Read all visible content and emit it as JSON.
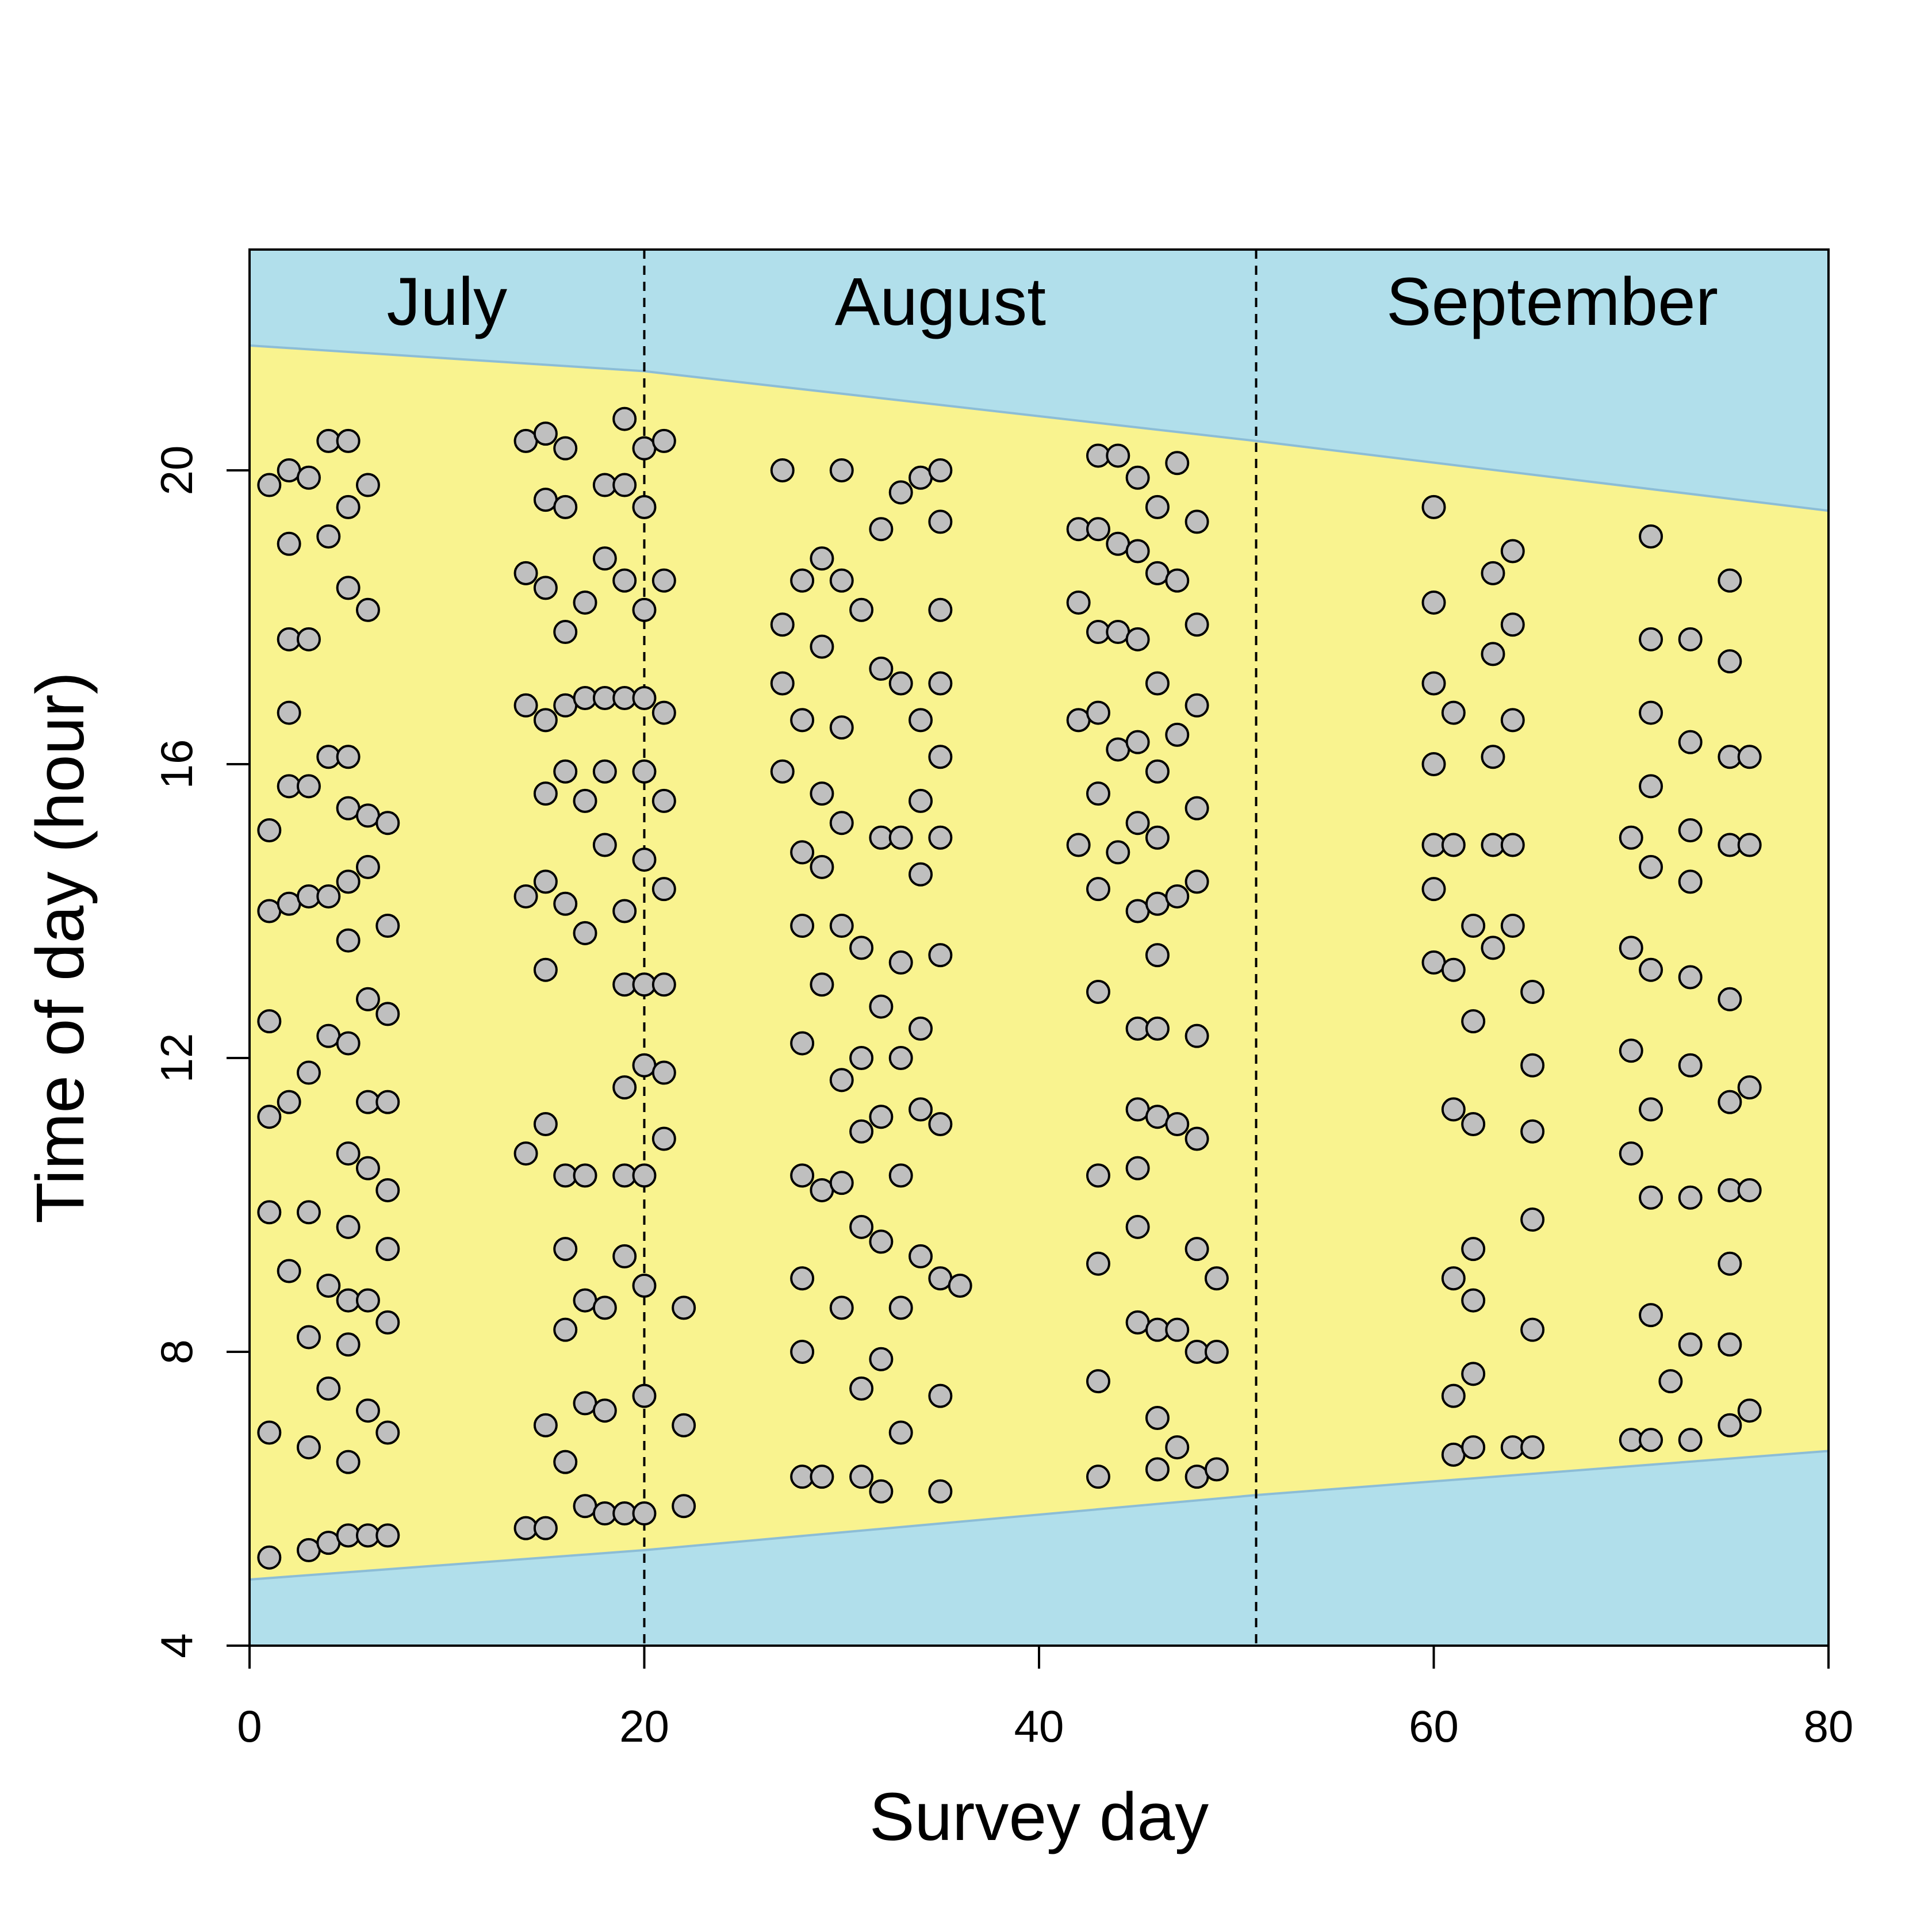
{
  "chart_data": {
    "type": "scatter",
    "xlabel": "Survey day",
    "ylabel": "Time of day (hour)",
    "xlim": [
      0,
      80
    ],
    "ylim": [
      4,
      23
    ],
    "x_ticks": [
      0,
      20,
      40,
      60,
      80
    ],
    "y_ticks": [
      4,
      8,
      12,
      16,
      20
    ],
    "grid": false,
    "month_labels": [
      {
        "label": "July",
        "x_center": 10
      },
      {
        "label": "August",
        "x_center": 35
      },
      {
        "label": "September",
        "x_center": 66
      }
    ],
    "month_boundaries": [
      20,
      51
    ],
    "daylight": {
      "x": [
        0,
        20,
        51,
        80
      ],
      "sunrise": [
        4.9,
        5.3,
        6.05,
        6.65
      ],
      "sunset": [
        21.7,
        21.35,
        20.4,
        19.45
      ]
    },
    "colors": {
      "night": "#b1dfeb",
      "day": "#f9f38f",
      "edge_line": "#8cbdd6",
      "point_fill": "#bfbfbf",
      "point_edge": "#000000"
    },
    "points": [
      [
        1,
        19.8
      ],
      [
        1,
        15.1
      ],
      [
        1,
        14.0
      ],
      [
        1,
        12.5
      ],
      [
        1,
        11.2
      ],
      [
        1,
        9.9
      ],
      [
        1,
        6.9
      ],
      [
        1,
        5.2
      ],
      [
        2,
        20.0
      ],
      [
        2,
        19.0
      ],
      [
        2,
        17.7
      ],
      [
        2,
        16.7
      ],
      [
        2,
        15.7
      ],
      [
        2,
        14.1
      ],
      [
        2,
        11.4
      ],
      [
        2,
        9.1
      ],
      [
        3,
        19.9
      ],
      [
        3,
        17.7
      ],
      [
        3,
        15.7
      ],
      [
        3,
        14.2
      ],
      [
        3,
        11.8
      ],
      [
        3,
        9.9
      ],
      [
        3,
        8.2
      ],
      [
        3,
        6.7
      ],
      [
        3,
        5.3
      ],
      [
        4,
        20.4
      ],
      [
        4,
        19.1
      ],
      [
        4,
        16.1
      ],
      [
        4,
        14.2
      ],
      [
        4,
        12.3
      ],
      [
        4,
        8.9
      ],
      [
        4,
        7.5
      ],
      [
        4,
        5.4
      ],
      [
        5,
        20.4
      ],
      [
        5,
        19.5
      ],
      [
        5,
        18.4
      ],
      [
        5,
        16.1
      ],
      [
        5,
        15.4
      ],
      [
        5,
        14.4
      ],
      [
        5,
        13.6
      ],
      [
        5,
        12.2
      ],
      [
        5,
        10.7
      ],
      [
        5,
        9.7
      ],
      [
        5,
        8.7
      ],
      [
        5,
        8.1
      ],
      [
        5,
        6.5
      ],
      [
        5,
        5.5
      ],
      [
        6,
        19.8
      ],
      [
        6,
        18.1
      ],
      [
        6,
        15.3
      ],
      [
        6,
        14.6
      ],
      [
        6,
        12.8
      ],
      [
        6,
        11.4
      ],
      [
        6,
        10.5
      ],
      [
        6,
        8.7
      ],
      [
        6,
        7.2
      ],
      [
        6,
        5.5
      ],
      [
        7,
        15.2
      ],
      [
        7,
        13.8
      ],
      [
        7,
        12.6
      ],
      [
        7,
        11.4
      ],
      [
        7,
        10.2
      ],
      [
        7,
        9.4
      ],
      [
        7,
        8.4
      ],
      [
        7,
        6.9
      ],
      [
        7,
        5.5
      ],
      [
        14,
        20.4
      ],
      [
        14,
        18.6
      ],
      [
        14,
        16.8
      ],
      [
        14,
        14.2
      ],
      [
        14,
        10.7
      ],
      [
        14,
        5.6
      ],
      [
        15,
        20.5
      ],
      [
        15,
        19.6
      ],
      [
        15,
        18.4
      ],
      [
        15,
        16.6
      ],
      [
        15,
        15.6
      ],
      [
        15,
        14.4
      ],
      [
        15,
        13.2
      ],
      [
        15,
        11.1
      ],
      [
        15,
        7.0
      ],
      [
        15,
        5.6
      ],
      [
        16,
        20.3
      ],
      [
        16,
        19.5
      ],
      [
        16,
        17.8
      ],
      [
        16,
        16.8
      ],
      [
        16,
        15.9
      ],
      [
        16,
        14.1
      ],
      [
        16,
        10.4
      ],
      [
        16,
        9.4
      ],
      [
        16,
        8.3
      ],
      [
        16,
        6.5
      ],
      [
        17,
        18.2
      ],
      [
        17,
        16.9
      ],
      [
        17,
        15.5
      ],
      [
        17,
        13.7
      ],
      [
        17,
        10.4
      ],
      [
        17,
        8.7
      ],
      [
        17,
        7.3
      ],
      [
        17,
        5.9
      ],
      [
        18,
        19.8
      ],
      [
        18,
        18.8
      ],
      [
        18,
        16.9
      ],
      [
        18,
        15.9
      ],
      [
        18,
        14.9
      ],
      [
        18,
        8.6
      ],
      [
        18,
        7.2
      ],
      [
        18,
        5.8
      ],
      [
        19,
        20.7
      ],
      [
        19,
        19.8
      ],
      [
        19,
        18.5
      ],
      [
        19,
        16.9
      ],
      [
        19,
        14.0
      ],
      [
        19,
        13.0
      ],
      [
        19,
        11.6
      ],
      [
        19,
        10.4
      ],
      [
        19,
        9.3
      ],
      [
        19,
        5.8
      ],
      [
        20,
        20.3
      ],
      [
        20,
        19.5
      ],
      [
        20,
        18.1
      ],
      [
        20,
        16.9
      ],
      [
        20,
        15.9
      ],
      [
        20,
        14.7
      ],
      [
        20,
        13.0
      ],
      [
        20,
        11.9
      ],
      [
        20,
        10.4
      ],
      [
        20,
        8.9
      ],
      [
        20,
        7.4
      ],
      [
        20,
        5.8
      ],
      [
        21,
        20.4
      ],
      [
        21,
        18.5
      ],
      [
        21,
        16.7
      ],
      [
        21,
        15.5
      ],
      [
        21,
        14.3
      ],
      [
        21,
        13.0
      ],
      [
        21,
        11.8
      ],
      [
        21,
        10.9
      ],
      [
        22,
        8.6
      ],
      [
        22,
        7.0
      ],
      [
        22,
        5.9
      ],
      [
        27,
        20.0
      ],
      [
        27,
        17.9
      ],
      [
        27,
        17.1
      ],
      [
        27,
        15.9
      ],
      [
        28,
        18.5
      ],
      [
        28,
        16.6
      ],
      [
        28,
        14.8
      ],
      [
        28,
        13.8
      ],
      [
        28,
        12.2
      ],
      [
        28,
        10.4
      ],
      [
        28,
        9.0
      ],
      [
        28,
        8.0
      ],
      [
        28,
        6.3
      ],
      [
        29,
        18.8
      ],
      [
        29,
        17.6
      ],
      [
        29,
        15.6
      ],
      [
        29,
        14.6
      ],
      [
        29,
        13.0
      ],
      [
        29,
        10.2
      ],
      [
        29,
        6.3
      ],
      [
        30,
        20.0
      ],
      [
        30,
        18.5
      ],
      [
        30,
        16.5
      ],
      [
        30,
        15.2
      ],
      [
        30,
        13.8
      ],
      [
        30,
        11.7
      ],
      [
        30,
        10.3
      ],
      [
        30,
        8.6
      ],
      [
        31,
        18.1
      ],
      [
        31,
        13.5
      ],
      [
        31,
        12.0
      ],
      [
        31,
        11.0
      ],
      [
        31,
        9.7
      ],
      [
        31,
        7.5
      ],
      [
        31,
        6.3
      ],
      [
        32,
        19.2
      ],
      [
        32,
        17.3
      ],
      [
        32,
        15.0
      ],
      [
        32,
        12.7
      ],
      [
        32,
        11.2
      ],
      [
        32,
        9.5
      ],
      [
        32,
        7.9
      ],
      [
        32,
        6.1
      ],
      [
        33,
        19.7
      ],
      [
        33,
        17.1
      ],
      [
        33,
        15.0
      ],
      [
        33,
        13.3
      ],
      [
        33,
        12.0
      ],
      [
        33,
        10.4
      ],
      [
        33,
        8.6
      ],
      [
        33,
        6.9
      ],
      [
        34,
        19.9
      ],
      [
        34,
        16.6
      ],
      [
        34,
        15.5
      ],
      [
        34,
        14.5
      ],
      [
        34,
        12.4
      ],
      [
        34,
        11.3
      ],
      [
        34,
        9.3
      ],
      [
        35,
        20.0
      ],
      [
        35,
        19.3
      ],
      [
        35,
        18.1
      ],
      [
        35,
        17.1
      ],
      [
        35,
        16.1
      ],
      [
        35,
        15.0
      ],
      [
        35,
        13.4
      ],
      [
        35,
        11.1
      ],
      [
        35,
        9.0
      ],
      [
        35,
        7.4
      ],
      [
        35,
        6.1
      ],
      [
        36,
        8.9
      ],
      [
        42,
        19.2
      ],
      [
        42,
        18.2
      ],
      [
        42,
        16.6
      ],
      [
        42,
        14.9
      ],
      [
        43,
        20.2
      ],
      [
        43,
        19.2
      ],
      [
        43,
        17.8
      ],
      [
        43,
        16.7
      ],
      [
        43,
        15.6
      ],
      [
        43,
        14.3
      ],
      [
        43,
        12.9
      ],
      [
        43,
        10.4
      ],
      [
        43,
        9.2
      ],
      [
        43,
        7.6
      ],
      [
        43,
        6.3
      ],
      [
        44,
        20.2
      ],
      [
        44,
        19.0
      ],
      [
        44,
        17.8
      ],
      [
        44,
        16.2
      ],
      [
        44,
        14.8
      ],
      [
        45,
        19.9
      ],
      [
        45,
        18.9
      ],
      [
        45,
        17.7
      ],
      [
        45,
        16.3
      ],
      [
        45,
        15.2
      ],
      [
        45,
        14.0
      ],
      [
        45,
        12.4
      ],
      [
        45,
        11.3
      ],
      [
        45,
        10.5
      ],
      [
        45,
        9.7
      ],
      [
        45,
        8.4
      ],
      [
        46,
        19.5
      ],
      [
        46,
        18.6
      ],
      [
        46,
        17.1
      ],
      [
        46,
        15.9
      ],
      [
        46,
        15.0
      ],
      [
        46,
        14.1
      ],
      [
        46,
        13.4
      ],
      [
        46,
        12.4
      ],
      [
        46,
        11.2
      ],
      [
        46,
        8.3
      ],
      [
        46,
        7.1
      ],
      [
        46,
        6.4
      ],
      [
        47,
        20.1
      ],
      [
        47,
        18.5
      ],
      [
        47,
        16.4
      ],
      [
        47,
        14.2
      ],
      [
        47,
        11.1
      ],
      [
        47,
        8.3
      ],
      [
        47,
        6.7
      ],
      [
        48,
        19.3
      ],
      [
        48,
        17.9
      ],
      [
        48,
        16.8
      ],
      [
        48,
        15.4
      ],
      [
        48,
        14.4
      ],
      [
        48,
        12.3
      ],
      [
        48,
        10.9
      ],
      [
        48,
        9.4
      ],
      [
        48,
        8.0
      ],
      [
        48,
        6.3
      ],
      [
        49,
        9.0
      ],
      [
        49,
        8.0
      ],
      [
        49,
        6.4
      ],
      [
        60,
        19.5
      ],
      [
        60,
        18.2
      ],
      [
        60,
        17.1
      ],
      [
        60,
        16.0
      ],
      [
        60,
        14.9
      ],
      [
        60,
        14.3
      ],
      [
        60,
        13.3
      ],
      [
        61,
        16.7
      ],
      [
        61,
        14.9
      ],
      [
        61,
        13.2
      ],
      [
        61,
        11.3
      ],
      [
        61,
        9.0
      ],
      [
        61,
        7.4
      ],
      [
        61,
        6.6
      ],
      [
        62,
        13.8
      ],
      [
        62,
        12.5
      ],
      [
        62,
        11.1
      ],
      [
        62,
        9.4
      ],
      [
        62,
        8.7
      ],
      [
        62,
        7.7
      ],
      [
        62,
        6.7
      ],
      [
        63,
        18.6
      ],
      [
        63,
        17.5
      ],
      [
        63,
        16.1
      ],
      [
        63,
        14.9
      ],
      [
        63,
        13.5
      ],
      [
        64,
        18.9
      ],
      [
        64,
        17.9
      ],
      [
        64,
        16.6
      ],
      [
        64,
        14.9
      ],
      [
        64,
        13.8
      ],
      [
        64,
        6.7
      ],
      [
        65,
        12.9
      ],
      [
        65,
        11.9
      ],
      [
        65,
        11.0
      ],
      [
        65,
        9.8
      ],
      [
        65,
        8.3
      ],
      [
        65,
        6.7
      ],
      [
        70,
        15.0
      ],
      [
        70,
        13.5
      ],
      [
        70,
        12.1
      ],
      [
        70,
        10.7
      ],
      [
        70,
        6.8
      ],
      [
        71,
        19.1
      ],
      [
        71,
        17.7
      ],
      [
        71,
        16.7
      ],
      [
        71,
        15.7
      ],
      [
        71,
        14.6
      ],
      [
        71,
        13.2
      ],
      [
        71,
        11.3
      ],
      [
        71,
        10.1
      ],
      [
        71,
        8.5
      ],
      [
        71,
        6.8
      ],
      [
        72,
        7.6
      ],
      [
        73,
        17.7
      ],
      [
        73,
        16.3
      ],
      [
        73,
        15.1
      ],
      [
        73,
        14.4
      ],
      [
        73,
        13.1
      ],
      [
        73,
        11.9
      ],
      [
        73,
        10.1
      ],
      [
        73,
        8.1
      ],
      [
        73,
        6.8
      ],
      [
        75,
        18.5
      ],
      [
        75,
        17.4
      ],
      [
        75,
        16.1
      ],
      [
        75,
        14.9
      ],
      [
        75,
        12.8
      ],
      [
        75,
        11.4
      ],
      [
        75,
        10.2
      ],
      [
        75,
        9.2
      ],
      [
        75,
        8.1
      ],
      [
        75,
        7.0
      ],
      [
        76,
        16.1
      ],
      [
        76,
        14.9
      ],
      [
        76,
        11.6
      ],
      [
        76,
        10.2
      ],
      [
        76,
        7.2
      ]
    ]
  }
}
